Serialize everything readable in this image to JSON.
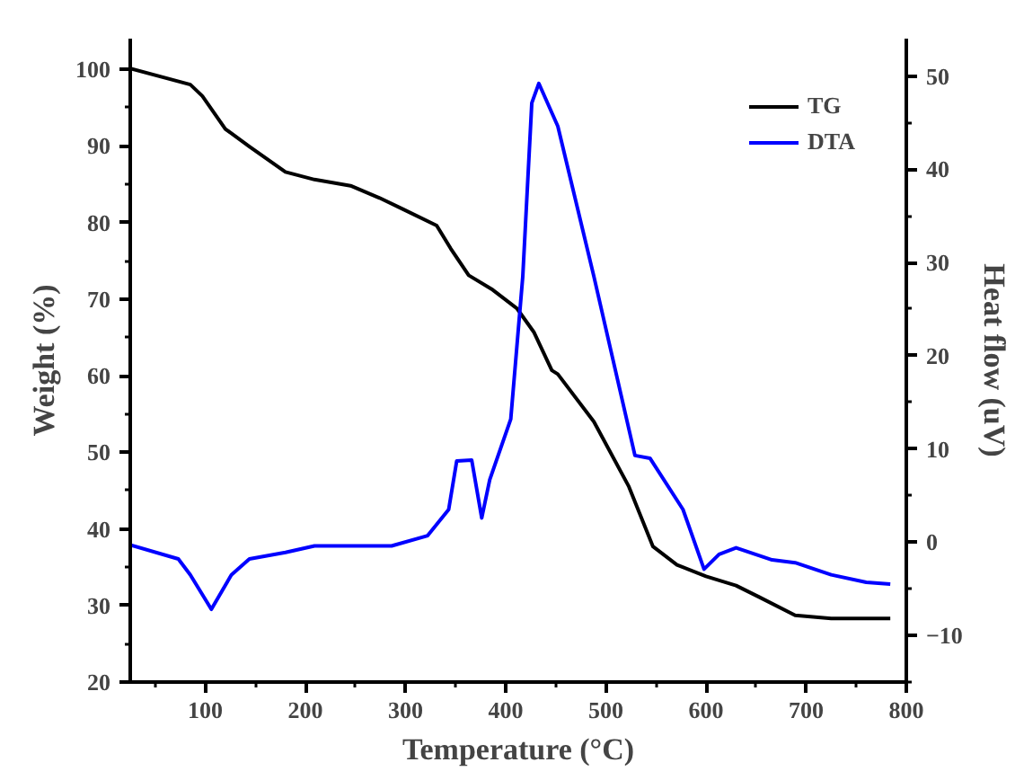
{
  "chart_data": {
    "type": "line",
    "xlabel": "Temperature (°C)",
    "ylabel": "Weight (%)",
    "y2label": "Heat flow (uV)",
    "xlim": [
      25,
      800
    ],
    "xticks": [
      100,
      200,
      300,
      400,
      500,
      600,
      700,
      800
    ],
    "ylim": [
      20,
      104
    ],
    "yticks": [
      20,
      30,
      40,
      50,
      60,
      70,
      80,
      90,
      100
    ],
    "y2lim": [
      -15,
      54
    ],
    "y2ticks": [
      -10,
      0,
      10,
      20,
      30,
      40,
      50
    ],
    "grid": false,
    "legend": "top right",
    "marker": "none",
    "line_style": "solid",
    "series": [
      {
        "name": "TG",
        "color": "#000000",
        "x": [
          25,
          85,
          97,
          120,
          144,
          180,
          209,
          245,
          274,
          298,
          331,
          345,
          363,
          387,
          411,
          428,
          446,
          452,
          488,
          523,
          535,
          547,
          571,
          600,
          630,
          653,
          689,
          725,
          784
        ],
        "values": [
          100.1,
          98.0,
          96.5,
          92.2,
          89.9,
          86.6,
          85.6,
          84.8,
          83.2,
          81.7,
          79.6,
          76.6,
          73.1,
          71.2,
          68.8,
          65.7,
          60.7,
          60.2,
          54.0,
          45.5,
          41.6,
          37.7,
          35.3,
          33.8,
          32.6,
          31.1,
          28.7,
          28.3,
          28.3
        ]
      },
      {
        "name": "DTA",
        "color": "#0000ff",
        "axis": "y2",
        "x": [
          25,
          73,
          85,
          106,
          126,
          144,
          180,
          209,
          286,
          322,
          343,
          351,
          366,
          376,
          384,
          405,
          417,
          426,
          433,
          452,
          488,
          529,
          544,
          577,
          598,
          613,
          630,
          666,
          689,
          725,
          760,
          784
        ],
        "values": [
          -0.3,
          -1.8,
          -3.5,
          -7.2,
          -3.5,
          -1.8,
          -1.1,
          -0.4,
          -0.4,
          0.7,
          3.5,
          8.7,
          8.8,
          2.6,
          6.7,
          13.2,
          28.5,
          47.1,
          49.2,
          44.6,
          28.5,
          9.3,
          9.0,
          3.5,
          -2.9,
          -1.3,
          -0.6,
          -1.9,
          -2.2,
          -3.5,
          -4.3,
          -4.5
        ]
      }
    ]
  }
}
